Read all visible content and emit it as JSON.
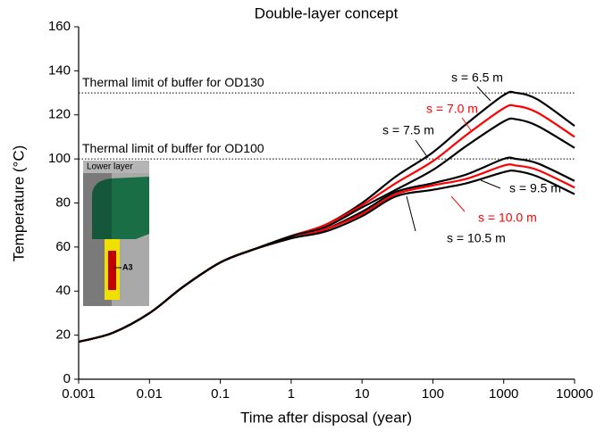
{
  "chart_data": {
    "type": "line",
    "title": "Double-layer concept",
    "x_label": "Time after disposal (year)",
    "y_label": "Temperature (°C)",
    "x_scale": "log",
    "x": [
      0.001,
      0.003,
      0.01,
      0.03,
      0.1,
      0.3,
      1,
      3,
      10,
      30,
      100,
      300,
      1000,
      1500,
      3000,
      10000
    ],
    "series": [
      {
        "name": "s = 6.5 m",
        "color": "#000000",
        "values": [
          17,
          21,
          30,
          42,
          53,
          59,
          65,
          70,
          80,
          92,
          103,
          116,
          129,
          130,
          127,
          115
        ]
      },
      {
        "name": "s = 7.0 m",
        "color": "#ff0000",
        "values": [
          17,
          21,
          30,
          42,
          53,
          59,
          65,
          70,
          79,
          89,
          99,
          111,
          123,
          124,
          121,
          110
        ]
      },
      {
        "name": "s = 7.5 m",
        "color": "#000000",
        "values": [
          17,
          21,
          30,
          42,
          53,
          59,
          65,
          69,
          78,
          86,
          95,
          106,
          117,
          118,
          115,
          105
        ]
      },
      {
        "name": "s = 9.5 m",
        "color": "#000000",
        "values": [
          17,
          21,
          30,
          42,
          53,
          59,
          64,
          68,
          76,
          85,
          89,
          93,
          100,
          100,
          98,
          90
        ]
      },
      {
        "name": "s = 10.0 m",
        "color": "#ff0000",
        "values": [
          17,
          21,
          30,
          42,
          53,
          59,
          64,
          68,
          75,
          84,
          88,
          91,
          97,
          97,
          95,
          87
        ]
      },
      {
        "name": "s = 10.5 m",
        "color": "#000000",
        "values": [
          17,
          21,
          30,
          42,
          53,
          59,
          64,
          67,
          74,
          83,
          86,
          89,
          94,
          94.5,
          92,
          84
        ]
      }
    ],
    "reference_lines": [
      {
        "value": 130,
        "label": "Thermal limit of buffer for OD130"
      },
      {
        "value": 100,
        "label": "Thermal limit of buffer for OD100"
      }
    ],
    "xlim": [
      0.001,
      10000
    ],
    "xticks": [
      0.001,
      0.01,
      0.1,
      1,
      10,
      100,
      1000,
      10000
    ],
    "ylim": [
      0,
      160
    ],
    "yticks": [
      0,
      20,
      40,
      60,
      80,
      100,
      120,
      140,
      160
    ]
  },
  "inset": {
    "title": "Lower layer",
    "label": "A3"
  }
}
